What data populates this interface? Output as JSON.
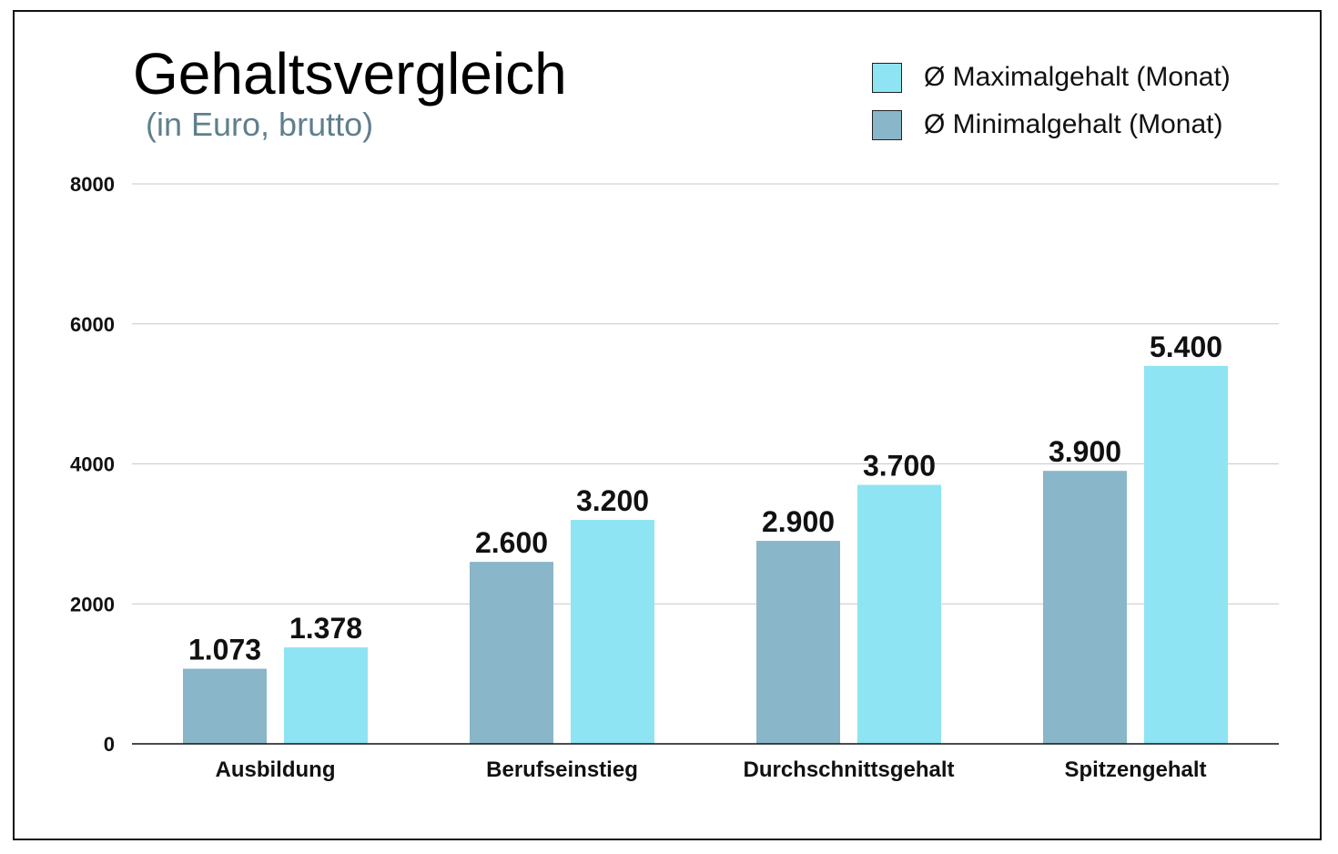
{
  "chart_data": {
    "type": "bar",
    "title": "Gehaltsvergleich",
    "subtitle": "(in Euro, brutto)",
    "categories": [
      "Ausbildung",
      "Berufseinstieg",
      "Durchschnittsgehalt",
      "Spitzengehalt"
    ],
    "series": [
      {
        "name": "Ø Minimalgehalt (Monat)",
        "color": "#89b6c9",
        "values": [
          1073,
          2600,
          2900,
          3900
        ],
        "labels": [
          "1.073",
          "2.600",
          "2.900",
          "3.900"
        ]
      },
      {
        "name": "Ø Maximalgehalt (Monat)",
        "color": "#8ee4f2",
        "values": [
          1378,
          3200,
          3700,
          5400
        ],
        "labels": [
          "1.378",
          "3.200",
          "3.700",
          "5.400"
        ]
      }
    ],
    "legend_order": [
      1,
      0
    ],
    "legend_placement": "top-right",
    "ylim": [
      0,
      8000
    ],
    "yticks": [
      0,
      2000,
      4000,
      6000,
      8000
    ],
    "grid": true,
    "xlabel": "",
    "ylabel": ""
  }
}
